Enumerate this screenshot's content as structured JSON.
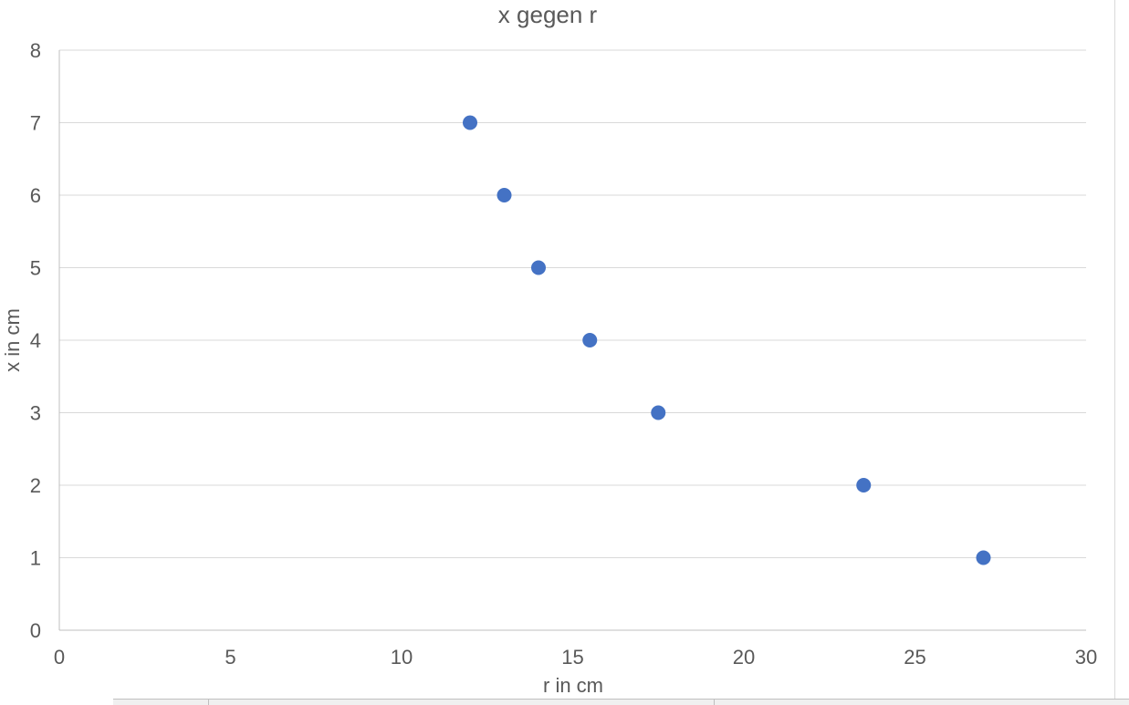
{
  "chart_data": {
    "type": "scatter",
    "title": "x gegen r",
    "xlabel": "r in cm",
    "ylabel": "x in cm",
    "xlim": [
      0,
      30
    ],
    "ylim": [
      0,
      8
    ],
    "xticks": [
      0,
      5,
      10,
      15,
      20,
      25,
      30
    ],
    "yticks": [
      0,
      1,
      2,
      3,
      4,
      5,
      6,
      7,
      8
    ],
    "grid": "horizontal",
    "legend": "none",
    "marker_color": "#4472C4",
    "points": [
      {
        "x": 12.0,
        "y": 7
      },
      {
        "x": 13.0,
        "y": 6
      },
      {
        "x": 14.0,
        "y": 5
      },
      {
        "x": 15.5,
        "y": 4
      },
      {
        "x": 17.5,
        "y": 3
      },
      {
        "x": 23.5,
        "y": 2
      },
      {
        "x": 27.0,
        "y": 1
      }
    ]
  }
}
